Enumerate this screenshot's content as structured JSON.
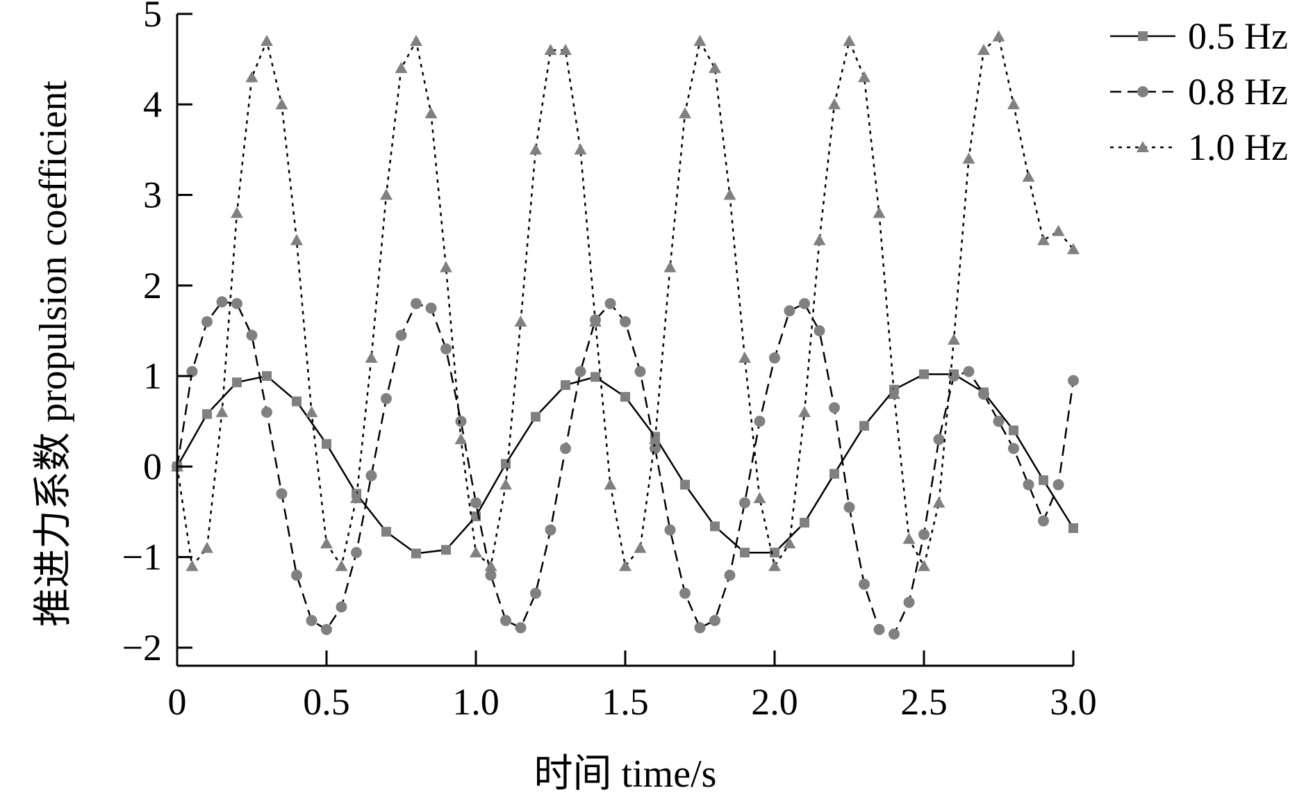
{
  "chart_data": {
    "type": "line",
    "xlabel": "时间 time/s",
    "ylabel": "推进力系数 propulsion coefficient",
    "xlim": [
      0,
      3.0
    ],
    "ylim": [
      -2.2,
      5
    ],
    "x_ticks": [
      0,
      0.5,
      1.0,
      1.5,
      2.0,
      2.5,
      3.0
    ],
    "x_tick_labels": [
      "0",
      "0.5",
      "1.0",
      "1.5",
      "2.0",
      "2.5",
      "3.0"
    ],
    "y_ticks": [
      -2,
      -1,
      0,
      1,
      2,
      3,
      4,
      5
    ],
    "y_tick_labels": [
      "−2",
      "−1",
      "0",
      "1",
      "2",
      "3",
      "4",
      "5"
    ],
    "legend_position": "top-right",
    "grid": false,
    "series": [
      {
        "name": "0.5 Hz",
        "marker": "square",
        "line_style": "solid",
        "color": "#808080",
        "x": [
          0,
          0.1,
          0.2,
          0.3,
          0.4,
          0.5,
          0.6,
          0.7,
          0.8,
          0.9,
          1.0,
          1.1,
          1.2,
          1.3,
          1.4,
          1.5,
          1.6,
          1.7,
          1.8,
          1.9,
          2.0,
          2.1,
          2.2,
          2.3,
          2.4,
          2.5,
          2.6,
          2.7,
          2.8,
          2.9,
          3.0
        ],
        "y": [
          0,
          0.58,
          0.93,
          1.0,
          0.72,
          0.25,
          -0.3,
          -0.72,
          -0.96,
          -0.92,
          -0.55,
          0.03,
          0.55,
          0.9,
          0.99,
          0.77,
          0.33,
          -0.2,
          -0.66,
          -0.95,
          -0.95,
          -0.62,
          -0.08,
          0.45,
          0.85,
          1.02,
          1.02,
          0.82,
          0.4,
          -0.15,
          -0.68
        ]
      },
      {
        "name": "0.8 Hz",
        "marker": "circle",
        "line_style": "dashed",
        "color": "#808080",
        "x": [
          0,
          0.05,
          0.1,
          0.15,
          0.2,
          0.25,
          0.3,
          0.35,
          0.4,
          0.45,
          0.5,
          0.55,
          0.6,
          0.65,
          0.7,
          0.75,
          0.8,
          0.85,
          0.9,
          0.95,
          1.0,
          1.05,
          1.1,
          1.15,
          1.2,
          1.25,
          1.3,
          1.35,
          1.4,
          1.45,
          1.5,
          1.55,
          1.6,
          1.65,
          1.7,
          1.75,
          1.8,
          1.85,
          1.9,
          1.95,
          2.0,
          2.05,
          2.1,
          2.15,
          2.2,
          2.25,
          2.3,
          2.35,
          2.4,
          2.45,
          2.5,
          2.55,
          2.6,
          2.65,
          2.7,
          2.75,
          2.8,
          2.85,
          2.9,
          2.95,
          3.0
        ],
        "y": [
          0,
          1.05,
          1.6,
          1.82,
          1.8,
          1.45,
          0.6,
          -0.3,
          -1.2,
          -1.7,
          -1.8,
          -1.55,
          -0.95,
          -0.1,
          0.75,
          1.45,
          1.8,
          1.75,
          1.3,
          0.5,
          -0.4,
          -1.2,
          -1.7,
          -1.78,
          -1.4,
          -0.7,
          0.2,
          1.05,
          1.62,
          1.8,
          1.6,
          1.05,
          0.2,
          -0.7,
          -1.4,
          -1.78,
          -1.7,
          -1.2,
          -0.4,
          0.5,
          1.2,
          1.72,
          1.8,
          1.5,
          0.65,
          -0.45,
          -1.3,
          -1.8,
          -1.85,
          -1.5,
          -0.75,
          0.3,
          1.0,
          1.05,
          0.8,
          0.5,
          0.2,
          -0.2,
          -0.6,
          -0.2,
          0.95
        ]
      },
      {
        "name": "1.0 Hz",
        "marker": "triangle",
        "line_style": "dotted",
        "color": "#808080",
        "x": [
          0,
          0.05,
          0.1,
          0.15,
          0.2,
          0.25,
          0.3,
          0.35,
          0.4,
          0.45,
          0.5,
          0.55,
          0.6,
          0.65,
          0.7,
          0.75,
          0.8,
          0.85,
          0.9,
          0.95,
          1.0,
          1.05,
          1.1,
          1.15,
          1.2,
          1.25,
          1.3,
          1.35,
          1.4,
          1.45,
          1.5,
          1.55,
          1.6,
          1.65,
          1.7,
          1.75,
          1.8,
          1.85,
          1.9,
          1.95,
          2.0,
          2.05,
          2.1,
          2.15,
          2.2,
          2.25,
          2.3,
          2.35,
          2.4,
          2.45,
          2.5,
          2.55,
          2.6,
          2.65,
          2.7,
          2.75,
          2.8,
          2.85,
          2.9,
          2.95,
          3.0
        ],
        "y": [
          0,
          -1.1,
          -0.9,
          0.6,
          2.8,
          4.3,
          4.7,
          4.0,
          2.5,
          0.6,
          -0.85,
          -1.1,
          -0.35,
          1.2,
          3.0,
          4.4,
          4.7,
          3.9,
          2.2,
          0.3,
          -0.95,
          -1.1,
          -0.2,
          1.6,
          3.5,
          4.6,
          4.6,
          3.5,
          1.6,
          -0.2,
          -1.1,
          -0.9,
          0.3,
          2.2,
          3.9,
          4.7,
          4.4,
          3.0,
          1.2,
          -0.35,
          -1.1,
          -0.85,
          0.6,
          2.5,
          4.0,
          4.7,
          4.3,
          2.8,
          0.8,
          -0.8,
          -1.1,
          -0.4,
          1.4,
          3.4,
          4.6,
          4.75,
          4.0,
          3.2,
          2.5,
          2.6,
          2.4
        ]
      }
    ]
  }
}
